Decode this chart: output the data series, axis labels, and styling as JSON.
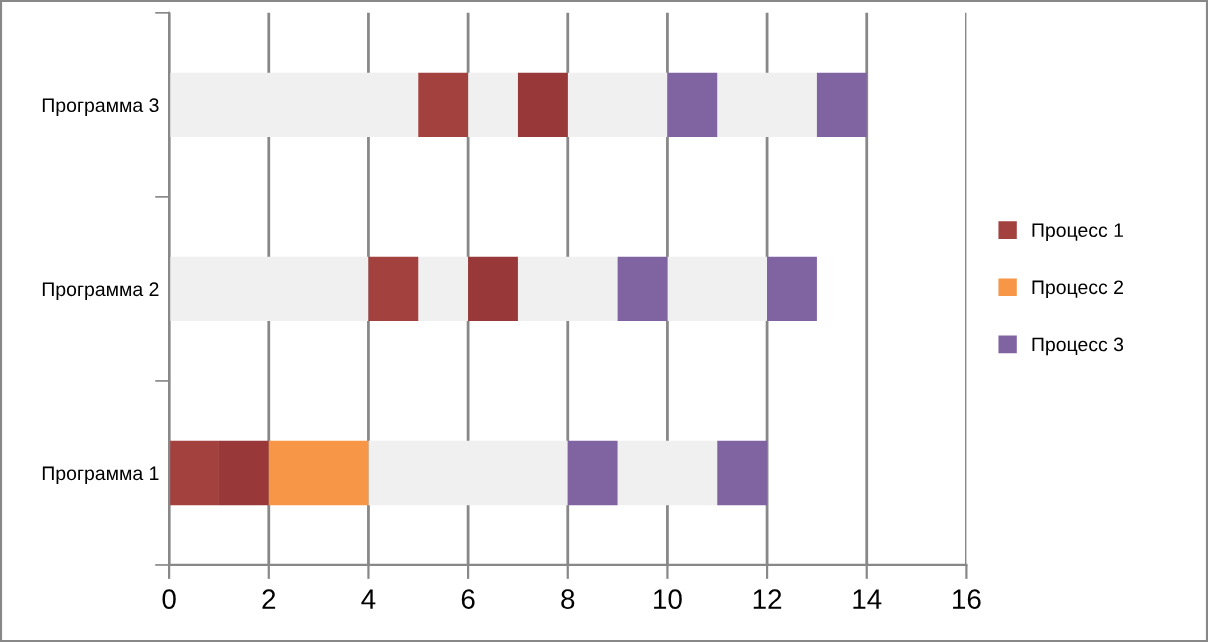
{
  "chart_data": {
    "type": "bar",
    "orientation": "horizontal",
    "categories": [
      "Программа 3",
      "Программа 2",
      "Программа 1"
    ],
    "series": [
      {
        "color": "#f0f0f0",
        "base": [
          0,
          0,
          4
        ],
        "values": [
          5,
          4,
          4
        ]
      },
      {
        "color": "#f0f0f0",
        "base": [
          6,
          5,
          9
        ],
        "values": [
          1,
          1,
          2
        ]
      },
      {
        "color": "#f0f0f0",
        "base": [
          8,
          7,
          null
        ],
        "values": [
          2,
          2,
          null
        ]
      },
      {
        "color": "#f0f0f0",
        "base": [
          11,
          10,
          null
        ],
        "values": [
          2,
          2,
          null
        ]
      },
      {
        "name": "Процесс 1",
        "color": "#a3413e",
        "base": [
          5,
          4,
          0
        ],
        "values": [
          1,
          1,
          1
        ]
      },
      {
        "color": "#983838",
        "base": [
          7,
          6,
          1
        ],
        "values": [
          1,
          1,
          1
        ]
      },
      {
        "name": "Процесс 2",
        "color": "#f79646",
        "base": [
          null,
          null,
          2
        ],
        "values": [
          null,
          null,
          2
        ]
      },
      {
        "name": "Процесс 3",
        "color": "#8064a2",
        "base": [
          10,
          9,
          8
        ],
        "values": [
          1,
          1,
          1
        ]
      },
      {
        "color": "#8064a2",
        "base": [
          13,
          12,
          11
        ],
        "values": [
          1,
          1,
          1
        ]
      }
    ],
    "xlim": [
      0,
      16
    ],
    "xticks": [
      0,
      2,
      4,
      6,
      8,
      10,
      12,
      14,
      16
    ],
    "grid": "x",
    "legend": "right"
  }
}
